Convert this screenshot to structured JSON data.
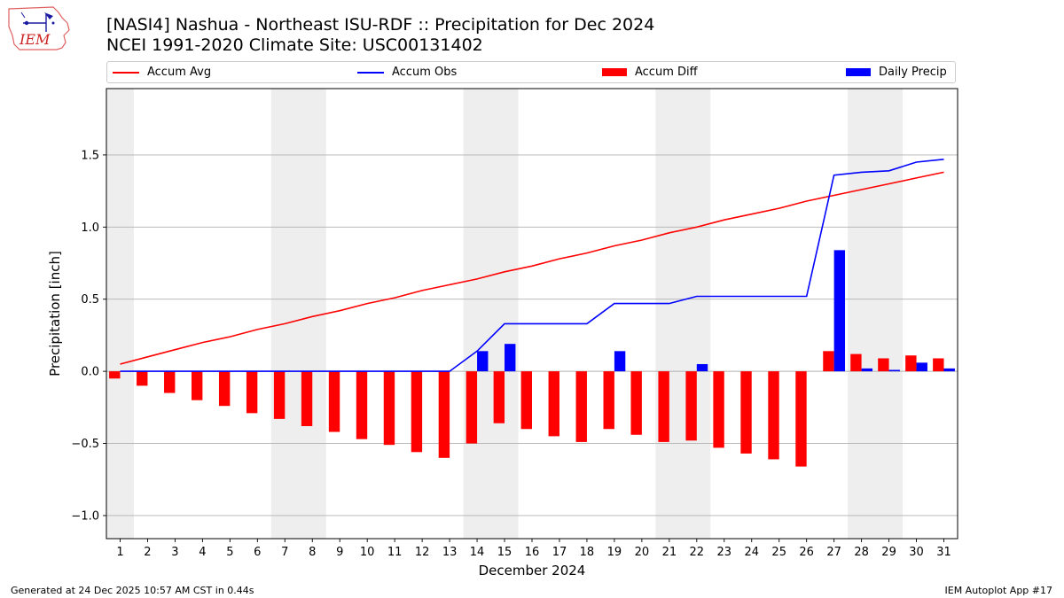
{
  "header": {
    "title_line1": "[NASI4] Nashua - Northeast ISU-RDF :: Precipitation for Dec 2024",
    "title_line2": "NCEI 1991-2020 Climate Site: USC00131402",
    "logo_text": "IEM"
  },
  "legend": {
    "accum_avg": "Accum Avg",
    "accum_obs": "Accum Obs",
    "accum_diff": "Accum Diff",
    "daily_precip": "Daily Precip"
  },
  "footer": {
    "generated": "Generated at 24 Dec 2025 10:57 AM CST in 0.44s",
    "app": "IEM Autoplot App #17"
  },
  "colors": {
    "avg": "#ff0000",
    "obs": "#0000ff",
    "diff": "#ff0000",
    "daily": "#0000ff",
    "weekend_shade": "#eeeeee",
    "grid": "#b0b0b0"
  },
  "chart_data": {
    "type": "bar",
    "title": "[NASI4] Nashua - Northeast ISU-RDF :: Precipitation for Dec 2024",
    "xlabel": "December 2024",
    "ylabel": "Precipitation [inch]",
    "ylim": [
      -1.16,
      1.96
    ],
    "yticks": [
      -1.0,
      -0.5,
      0.0,
      0.5,
      1.0,
      1.5
    ],
    "ytick_labels": [
      "−1.0",
      "−0.5",
      "0.0",
      "0.5",
      "1.0",
      "1.5"
    ],
    "days": [
      1,
      2,
      3,
      4,
      5,
      6,
      7,
      8,
      9,
      10,
      11,
      12,
      13,
      14,
      15,
      16,
      17,
      18,
      19,
      20,
      21,
      22,
      23,
      24,
      25,
      26,
      27,
      28,
      29,
      30,
      31
    ],
    "shaded_days": [
      [
        1,
        1
      ],
      [
        7,
        8
      ],
      [
        14,
        15
      ],
      [
        21,
        22
      ],
      [
        28,
        29
      ]
    ],
    "series": [
      {
        "name": "Accum Avg",
        "kind": "line",
        "values": [
          0.05,
          0.1,
          0.15,
          0.2,
          0.24,
          0.29,
          0.33,
          0.38,
          0.42,
          0.47,
          0.51,
          0.56,
          0.6,
          0.64,
          0.69,
          0.73,
          0.78,
          0.82,
          0.87,
          0.91,
          0.96,
          1.0,
          1.05,
          1.09,
          1.13,
          1.18,
          1.22,
          1.26,
          1.3,
          1.34,
          1.38
        ]
      },
      {
        "name": "Accum Obs",
        "kind": "line",
        "values": [
          0,
          0,
          0,
          0,
          0,
          0,
          0,
          0,
          0,
          0,
          0,
          0,
          0,
          0.14,
          0.33,
          0.33,
          0.33,
          0.33,
          0.47,
          0.47,
          0.47,
          0.52,
          0.52,
          0.52,
          0.52,
          0.52,
          1.36,
          1.38,
          1.39,
          1.45,
          1.47
        ]
      },
      {
        "name": "Accum Diff",
        "kind": "bar",
        "values": [
          -0.05,
          -0.1,
          -0.15,
          -0.2,
          -0.24,
          -0.29,
          -0.33,
          -0.38,
          -0.42,
          -0.47,
          -0.51,
          -0.56,
          -0.6,
          -0.5,
          -0.36,
          -0.4,
          -0.45,
          -0.49,
          -0.4,
          -0.44,
          -0.49,
          -0.48,
          -0.53,
          -0.57,
          -0.61,
          -0.66,
          0.14,
          0.12,
          0.09,
          0.11,
          0.09
        ]
      },
      {
        "name": "Daily Precip",
        "kind": "bar",
        "values": [
          0,
          0,
          0,
          0,
          0,
          0,
          0,
          0,
          0,
          0,
          0,
          0,
          0,
          0.14,
          0.19,
          0,
          0,
          0,
          0.14,
          0,
          0,
          0.05,
          0,
          0,
          0,
          0,
          0.84,
          0.02,
          0.01,
          0.06,
          0.02
        ]
      }
    ]
  }
}
